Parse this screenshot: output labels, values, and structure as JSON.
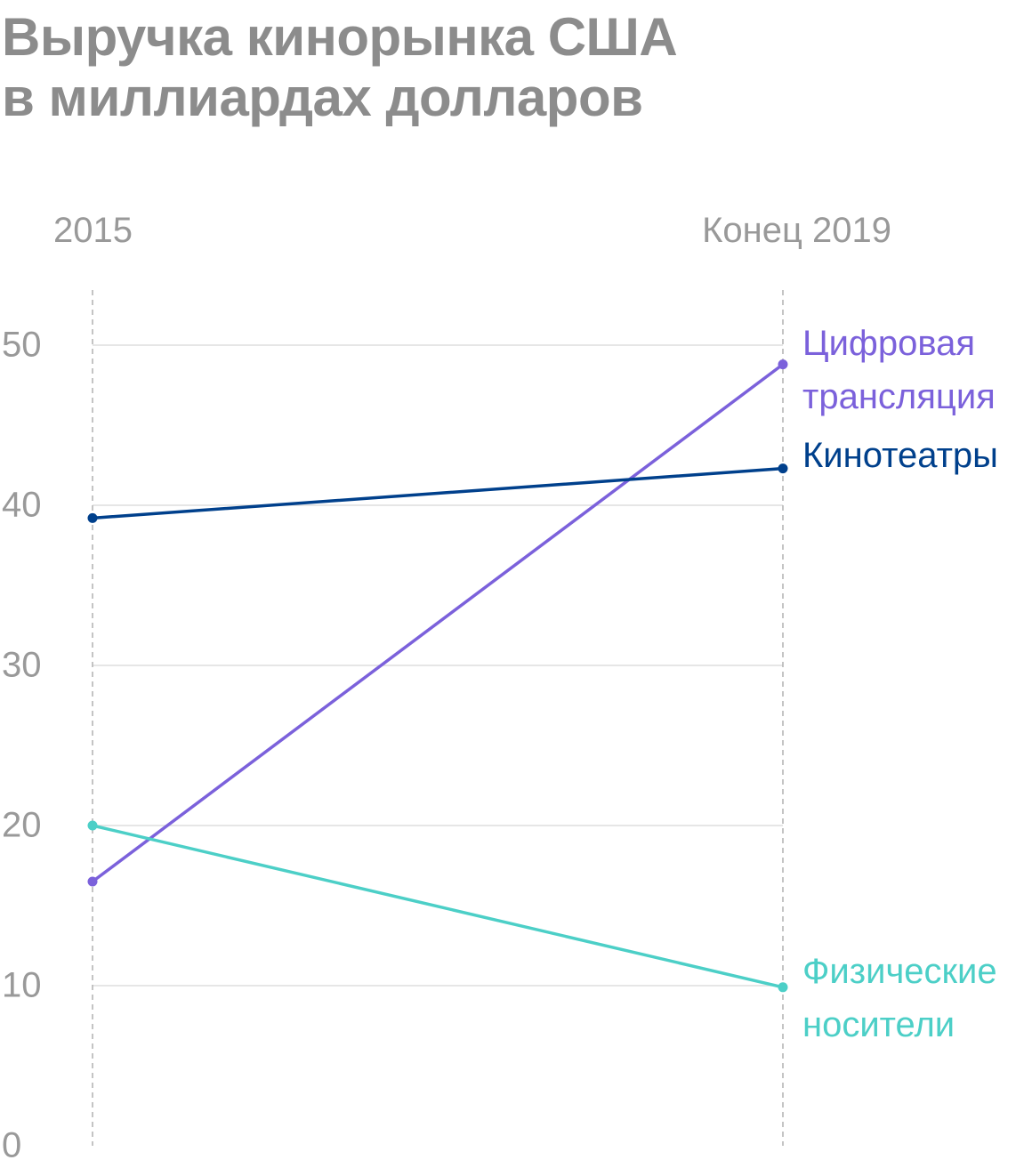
{
  "title_lines": [
    "Выручка кинорынка США",
    "в миллиардах долларов"
  ],
  "chart_data": {
    "type": "line",
    "title": "Выручка кинорынка США в миллиардах долларов",
    "x": [
      "2015",
      "Конец 2019"
    ],
    "ylim": [
      0,
      50
    ],
    "y_ticks": [
      0,
      10,
      20,
      30,
      40,
      50
    ],
    "grid": true,
    "legend": "labels at line ends (right)",
    "series": [
      {
        "name": "Цифровая трансляция",
        "label_lines": [
          "Цифровая",
          "трансляция"
        ],
        "values": [
          16.5,
          48.8
        ],
        "color": "#7b61db"
      },
      {
        "name": "Кинотеатры",
        "label_lines": [
          "Кинотеатры"
        ],
        "values": [
          39.2,
          42.3
        ],
        "color": "#00408c"
      },
      {
        "name": "Физические носители",
        "label_lines": [
          "Физические",
          "носители"
        ],
        "values": [
          20.0,
          9.9
        ],
        "color": "#4ccfc7"
      }
    ],
    "colors": {
      "axis_text": "#999999",
      "grid": "#dedede",
      "dashed_column": "#b0b0b0",
      "title": "#8c8c8c"
    }
  }
}
